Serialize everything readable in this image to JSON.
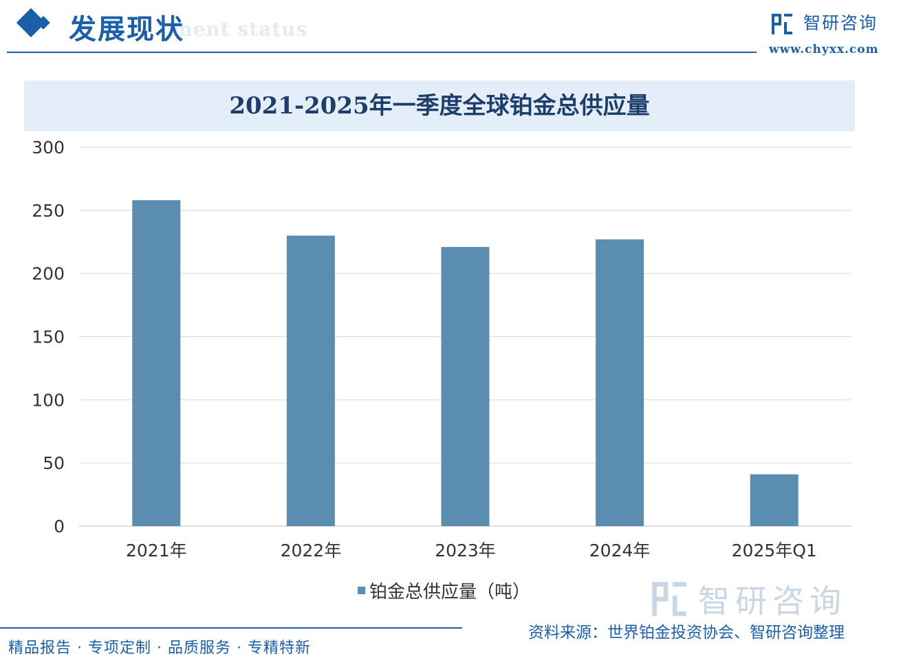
{
  "header": {
    "section_title": "发展现状",
    "section_subtitle": "ment status",
    "brand_name": "智研咨询",
    "brand_url": "www.chyxx.com",
    "brand_color": "#1b5fa8"
  },
  "chart_data": {
    "type": "bar",
    "title": "2021-2025年一季度全球铂金总供应量",
    "categories": [
      "2021年",
      "2022年",
      "2023年",
      "2024年",
      "2025年Q1"
    ],
    "series": [
      {
        "name": "铂金总供应量（吨）",
        "values": [
          258,
          230,
          221,
          227,
          41
        ],
        "color": "#5a8db0"
      }
    ],
    "yticks": [
      "0",
      "50",
      "100",
      "150",
      "200",
      "250",
      "300"
    ],
    "ylim": [
      0,
      300
    ],
    "grid": true,
    "legend_position": "bottom"
  },
  "watermark": {
    "name": "智研咨询"
  },
  "footer": {
    "slogan": "精品报告 · 专项定制 · 品质服务 · 专精特新",
    "source": "资料来源：世界铂金投资协会、智研咨询整理"
  }
}
